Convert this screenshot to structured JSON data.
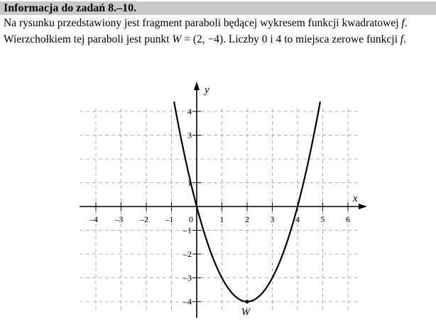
{
  "header": {
    "title": "Informacja do zadań 8.–10."
  },
  "intro": {
    "line1": "Na rysunku przedstawiony jest fragment paraboli będącej wykresem funkcji kwadratowej",
    "line1_var": "f",
    "line1_end": ".",
    "line2_a": "Wierzchołkiem tej paraboli jest punkt",
    "line2_point_name": "W",
    "line2_point_coords": " = (2, −4)",
    "line2_b": ". Liczby 0 i 4 to miejsca zerowe funkcji",
    "line2_var": "f",
    "line2_end": "."
  },
  "colors": {
    "header_bg": "#c9c9c9",
    "grid": "#9a9a9a",
    "curve": "#000000"
  },
  "chart_data": {
    "type": "line",
    "function": "f(x) = x^2 - 4x",
    "x_axis_label": "x",
    "y_axis_label": "y",
    "xlim": [
      -4.5,
      6.8
    ],
    "ylim": [
      -4.4,
      4.7
    ],
    "grid": true,
    "x_ticks": [
      {
        "v": -4,
        "label": "–4"
      },
      {
        "v": -3,
        "label": "–3"
      },
      {
        "v": -2,
        "label": "–2"
      },
      {
        "v": -1,
        "label": "–1"
      },
      {
        "v": 1,
        "label": "1"
      },
      {
        "v": 2,
        "label": "2"
      },
      {
        "v": 3,
        "label": "3"
      },
      {
        "v": 4,
        "label": "4"
      },
      {
        "v": 5,
        "label": "5"
      },
      {
        "v": 6,
        "label": "6"
      }
    ],
    "y_ticks": [
      {
        "v": 4,
        "label": "4"
      },
      {
        "v": 3,
        "label": "3"
      },
      {
        "v": 1,
        "label": "1"
      },
      {
        "v": -1,
        "label": "–1"
      },
      {
        "v": -2,
        "label": "–2"
      },
      {
        "v": -3,
        "label": "–3"
      },
      {
        "v": -4,
        "label": "–4"
      }
    ],
    "origin_label": "0",
    "curve_x_range": [
      -0.9,
      4.9
    ],
    "points": [
      {
        "name": "W",
        "x": 2,
        "y": -4
      }
    ]
  }
}
